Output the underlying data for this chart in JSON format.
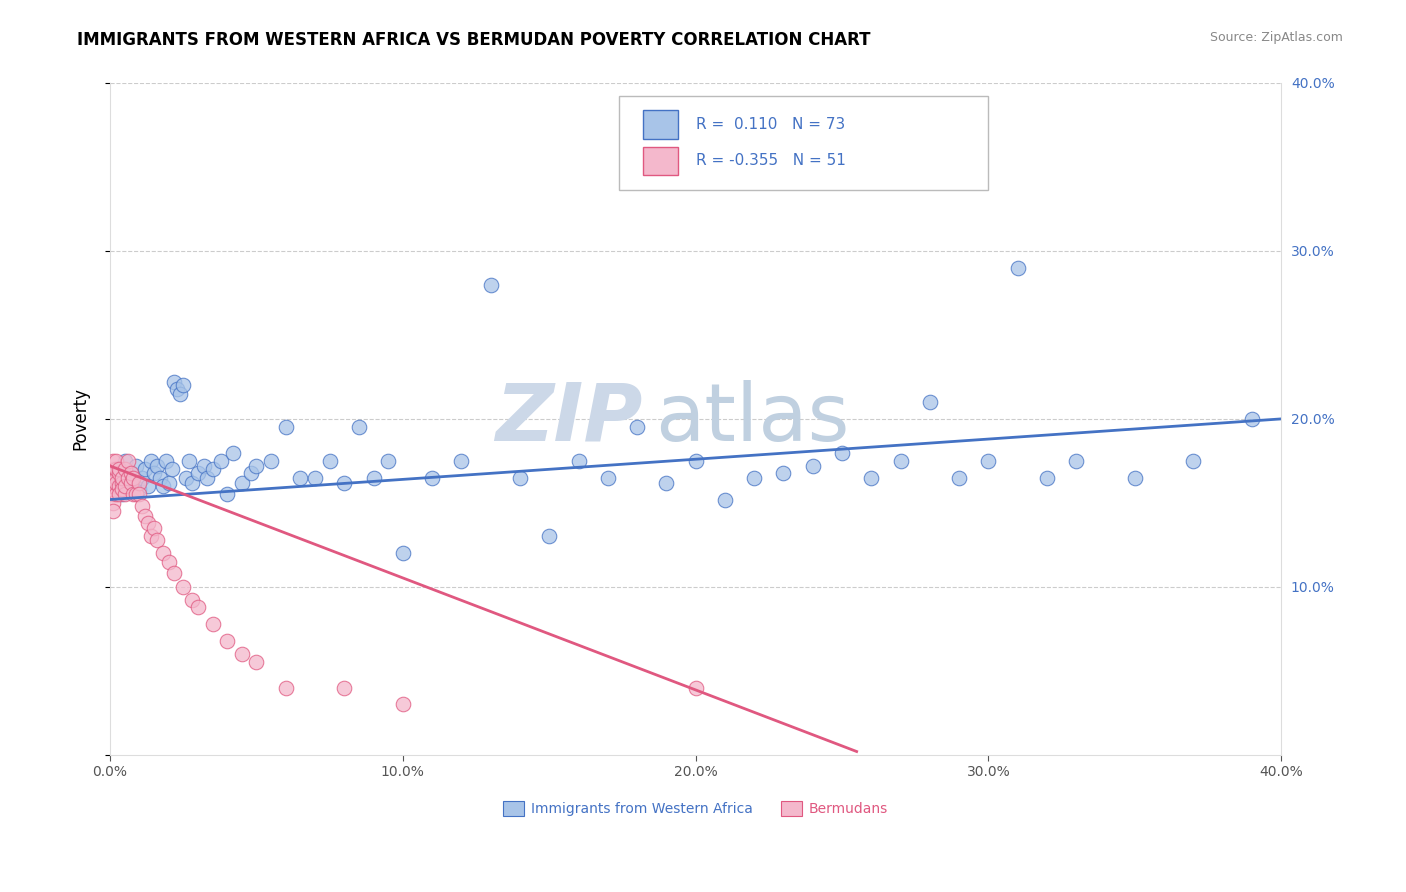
{
  "title": "IMMIGRANTS FROM WESTERN AFRICA VS BERMUDAN POVERTY CORRELATION CHART",
  "source": "Source: ZipAtlas.com",
  "ylabel": "Poverty",
  "xmin": 0.0,
  "xmax": 0.4,
  "ymin": 0.0,
  "ymax": 0.4,
  "blue_scatter_x": [
    0.002,
    0.003,
    0.004,
    0.005,
    0.006,
    0.007,
    0.008,
    0.009,
    0.01,
    0.011,
    0.012,
    0.013,
    0.014,
    0.015,
    0.016,
    0.017,
    0.018,
    0.019,
    0.02,
    0.021,
    0.022,
    0.023,
    0.024,
    0.025,
    0.026,
    0.027,
    0.028,
    0.03,
    0.032,
    0.033,
    0.035,
    0.038,
    0.04,
    0.042,
    0.045,
    0.048,
    0.05,
    0.055,
    0.06,
    0.065,
    0.07,
    0.075,
    0.08,
    0.085,
    0.09,
    0.095,
    0.1,
    0.11,
    0.12,
    0.13,
    0.14,
    0.15,
    0.16,
    0.17,
    0.18,
    0.19,
    0.2,
    0.21,
    0.22,
    0.23,
    0.24,
    0.25,
    0.26,
    0.27,
    0.28,
    0.29,
    0.3,
    0.31,
    0.32,
    0.33,
    0.35,
    0.37,
    0.39
  ],
  "blue_scatter_y": [
    0.165,
    0.17,
    0.155,
    0.175,
    0.16,
    0.168,
    0.162,
    0.172,
    0.158,
    0.165,
    0.17,
    0.16,
    0.175,
    0.168,
    0.172,
    0.165,
    0.16,
    0.175,
    0.162,
    0.17,
    0.222,
    0.218,
    0.215,
    0.22,
    0.165,
    0.175,
    0.162,
    0.168,
    0.172,
    0.165,
    0.17,
    0.175,
    0.155,
    0.18,
    0.162,
    0.168,
    0.172,
    0.175,
    0.195,
    0.165,
    0.165,
    0.175,
    0.162,
    0.195,
    0.165,
    0.175,
    0.12,
    0.165,
    0.175,
    0.28,
    0.165,
    0.13,
    0.175,
    0.165,
    0.195,
    0.162,
    0.175,
    0.152,
    0.165,
    0.168,
    0.172,
    0.18,
    0.165,
    0.175,
    0.21,
    0.165,
    0.175,
    0.29,
    0.165,
    0.175,
    0.165,
    0.175,
    0.2
  ],
  "pink_scatter_x": [
    0.001,
    0.001,
    0.001,
    0.001,
    0.001,
    0.001,
    0.001,
    0.002,
    0.002,
    0.002,
    0.002,
    0.002,
    0.003,
    0.003,
    0.003,
    0.003,
    0.004,
    0.004,
    0.004,
    0.005,
    0.005,
    0.005,
    0.006,
    0.006,
    0.007,
    0.007,
    0.008,
    0.008,
    0.009,
    0.01,
    0.01,
    0.011,
    0.012,
    0.013,
    0.014,
    0.015,
    0.016,
    0.018,
    0.02,
    0.022,
    0.025,
    0.028,
    0.03,
    0.035,
    0.04,
    0.045,
    0.05,
    0.06,
    0.08,
    0.1,
    0.2
  ],
  "pink_scatter_y": [
    0.165,
    0.17,
    0.155,
    0.16,
    0.175,
    0.15,
    0.145,
    0.165,
    0.155,
    0.17,
    0.162,
    0.175,
    0.16,
    0.168,
    0.155,
    0.17,
    0.162,
    0.158,
    0.165,
    0.17,
    0.155,
    0.16,
    0.165,
    0.175,
    0.162,
    0.168,
    0.155,
    0.165,
    0.155,
    0.162,
    0.155,
    0.148,
    0.142,
    0.138,
    0.13,
    0.135,
    0.128,
    0.12,
    0.115,
    0.108,
    0.1,
    0.092,
    0.088,
    0.078,
    0.068,
    0.06,
    0.055,
    0.04,
    0.04,
    0.03,
    0.04
  ],
  "blue_line_x": [
    0.0,
    0.4
  ],
  "blue_line_y": [
    0.152,
    0.2
  ],
  "pink_line_x": [
    0.0,
    0.255
  ],
  "pink_line_y": [
    0.172,
    0.002
  ],
  "blue_color": "#4472c4",
  "pink_color": "#e05880",
  "blue_fill": "#a8c4e8",
  "pink_fill": "#f4b8cc",
  "grid_color": "#cccccc",
  "watermark_zip_color": "#ccd8e8",
  "watermark_atlas_color": "#c0d0e0",
  "legend_r_values": [
    "0.110",
    "-0.355"
  ],
  "legend_n_values": [
    "73",
    "51"
  ],
  "legend_label_blue": "Immigrants from Western Africa",
  "legend_label_pink": "Bermudans"
}
